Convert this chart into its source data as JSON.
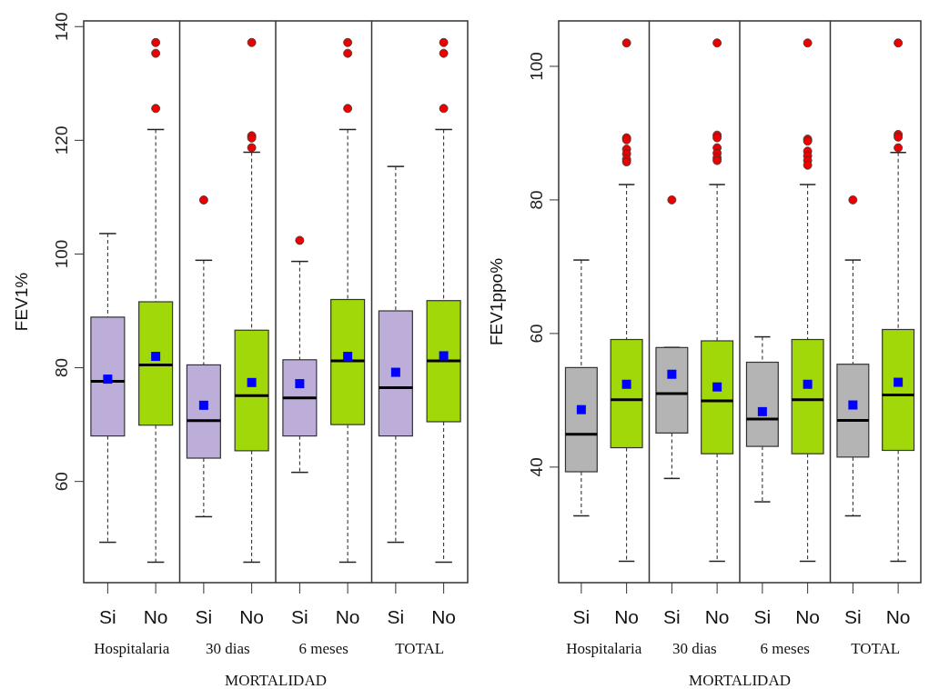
{
  "chart_data": [
    {
      "type": "box",
      "ylabel": "FEV1%",
      "xlabel": "MORTALIDAD",
      "categories": [
        "Si",
        "No",
        "Si",
        "No",
        "Si",
        "No",
        "Si",
        "No"
      ],
      "annotations": [
        "Hospitalaria",
        "30 dias",
        "6 meses",
        "TOTAL"
      ],
      "colors": [
        "#bcaed8",
        "#a0d80a",
        "#bcaed8",
        "#a0d80a",
        "#bcaed8",
        "#a0d80a",
        "#bcaed8",
        "#a0d80a"
      ],
      "ylim": [
        42.2,
        141
      ],
      "yticks": [
        60,
        80,
        100,
        120,
        140
      ],
      "grid": false,
      "boxes": [
        {
          "low": 49.3,
          "q1": 68.0,
          "median": 77.6,
          "q3": 88.9,
          "high": 103.6,
          "mean": 78.0
        },
        {
          "low": 45.8,
          "q1": 69.9,
          "median": 80.5,
          "q3": 91.6,
          "high": 121.9,
          "mean": 82.0,
          "outliers": [
            137.2,
            135.3,
            125.6
          ]
        },
        {
          "low": 53.8,
          "q1": 64.1,
          "median": 70.7,
          "q3": 80.5,
          "high": 98.9,
          "mean": 73.4,
          "outliers": [
            109.5
          ]
        },
        {
          "low": 45.8,
          "q1": 65.4,
          "median": 75.1,
          "q3": 86.6,
          "high": 117.9,
          "mean": 77.4,
          "outliers": [
            137.2,
            120.8,
            120.4,
            118.7
          ]
        },
        {
          "low": 61.6,
          "q1": 68.0,
          "median": 74.7,
          "q3": 81.4,
          "high": 98.7,
          "mean": 77.2,
          "outliers": [
            102.4
          ]
        },
        {
          "low": 45.8,
          "q1": 70.0,
          "median": 81.2,
          "q3": 92.0,
          "high": 121.9,
          "mean": 82.0,
          "outliers": [
            137.2,
            135.3,
            125.6
          ]
        },
        {
          "low": 49.3,
          "q1": 68.0,
          "median": 76.5,
          "q3": 90.0,
          "high": 115.4,
          "mean": 79.2
        },
        {
          "low": 45.8,
          "q1": 70.5,
          "median": 81.2,
          "q3": 91.8,
          "high": 121.9,
          "mean": 82.1,
          "outliers": [
            137.2,
            135.3,
            125.6
          ]
        }
      ]
    },
    {
      "type": "box",
      "ylabel": "FEV1ppo%",
      "xlabel": "MORTALIDAD",
      "categories": [
        "Si",
        "No",
        "Si",
        "No",
        "Si",
        "No",
        "Si",
        "No"
      ],
      "annotations": [
        "Hospitalaria",
        "30 dias",
        "6 meses",
        "TOTAL"
      ],
      "colors": [
        "#b4b4b4",
        "#a0d80a",
        "#b4b4b4",
        "#a0d80a",
        "#b4b4b4",
        "#a0d80a",
        "#b4b4b4",
        "#a0d80a"
      ],
      "ylim": [
        22.7,
        106.8
      ],
      "yticks": [
        40,
        60,
        80,
        100
      ],
      "grid": false,
      "boxes": [
        {
          "low": 32.7,
          "q1": 39.3,
          "median": 44.9,
          "q3": 54.9,
          "high": 71.0,
          "mean": 48.6
        },
        {
          "low": 25.9,
          "q1": 42.9,
          "median": 50.1,
          "q3": 59.1,
          "high": 82.3,
          "mean": 52.4,
          "outliers": [
            103.5,
            89.3,
            89.0,
            87.6,
            86.9,
            86.1,
            85.7
          ]
        },
        {
          "low": 38.3,
          "q1": 45.1,
          "median": 51.0,
          "q3": 57.9,
          "high": 57.9,
          "mean": 53.9,
          "outliers": [
            80.0
          ]
        },
        {
          "low": 25.9,
          "q1": 42.0,
          "median": 49.9,
          "q3": 58.9,
          "high": 82.3,
          "mean": 52.0,
          "outliers": [
            103.5,
            89.7,
            89.3,
            87.8,
            87.0,
            86.3,
            85.9
          ]
        },
        {
          "low": 34.8,
          "q1": 43.1,
          "median": 47.2,
          "q3": 55.7,
          "high": 59.5,
          "mean": 48.3
        },
        {
          "low": 25.9,
          "q1": 42.0,
          "median": 50.1,
          "q3": 59.1,
          "high": 82.3,
          "mean": 52.4,
          "outliers": [
            103.5,
            89.1,
            88.8,
            87.3,
            86.6,
            85.9,
            85.2
          ]
        },
        {
          "low": 32.7,
          "q1": 41.5,
          "median": 47.0,
          "q3": 55.4,
          "high": 71.0,
          "mean": 49.3,
          "outliers": [
            80.0
          ]
        },
        {
          "low": 25.9,
          "q1": 42.5,
          "median": 50.8,
          "q3": 60.6,
          "high": 87.1,
          "mean": 52.7,
          "outliers": [
            103.5,
            89.8,
            89.4,
            87.8
          ]
        }
      ]
    }
  ]
}
